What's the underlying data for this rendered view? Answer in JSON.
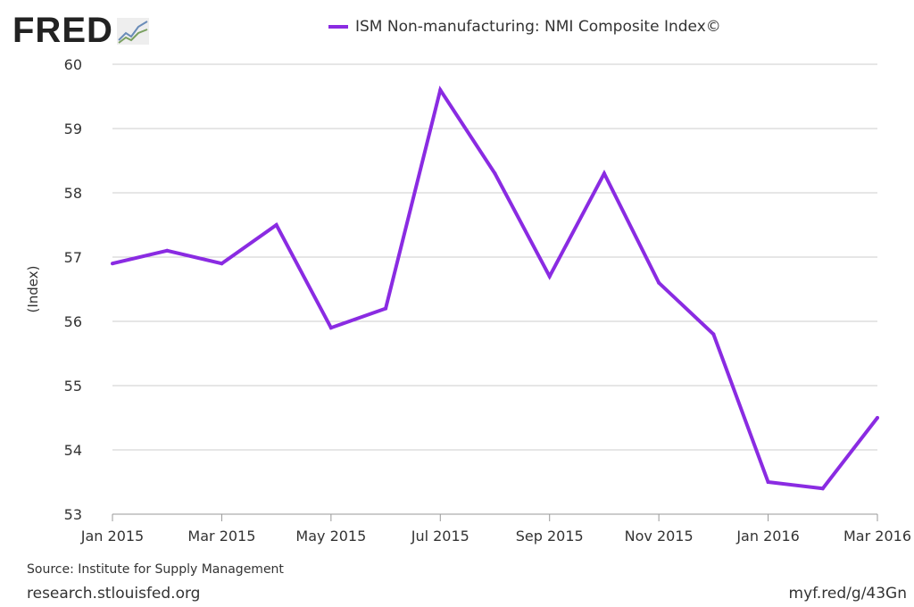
{
  "logo": {
    "text": "FRED"
  },
  "legend": {
    "series_name": "ISM Non-manufacturing: NMI Composite Index©"
  },
  "footer": {
    "source": "Source: Institute for Supply Management",
    "site": "research.stlouisfed.org",
    "shortlink": "myf.red/g/43Gn"
  },
  "chart_data": {
    "type": "line",
    "title": "",
    "xlabel": "",
    "ylabel": "(Index)",
    "ylim": [
      53,
      60
    ],
    "yticks": [
      53,
      54,
      55,
      56,
      57,
      58,
      59,
      60
    ],
    "grid": true,
    "legend_position": "top",
    "color": "#8a2be2",
    "x": [
      "2015-01",
      "2015-02",
      "2015-03",
      "2015-04",
      "2015-05",
      "2015-06",
      "2015-07",
      "2015-08",
      "2015-09",
      "2015-10",
      "2015-11",
      "2015-12",
      "2016-01",
      "2016-02",
      "2016-03"
    ],
    "xtick_labels": [
      "Jan 2015",
      "Mar 2015",
      "May 2015",
      "Jul 2015",
      "Sep 2015",
      "Nov 2015",
      "Jan 2016",
      "Mar 2016"
    ],
    "series": [
      {
        "name": "ISM Non-manufacturing: NMI Composite Index©",
        "values": [
          56.9,
          57.1,
          56.9,
          57.5,
          55.9,
          56.2,
          59.6,
          58.3,
          56.7,
          58.3,
          56.6,
          55.8,
          53.5,
          53.4,
          54.5
        ]
      }
    ]
  }
}
